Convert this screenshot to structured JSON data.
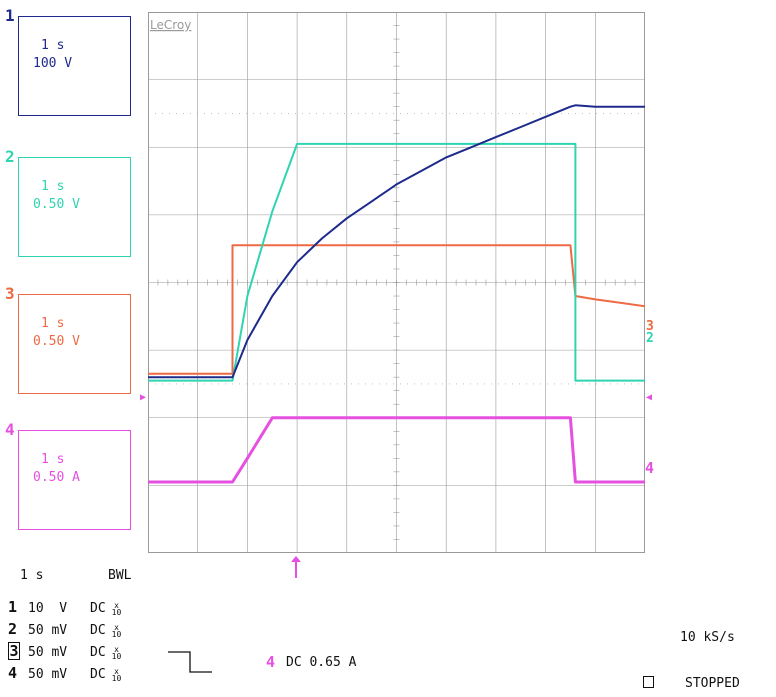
{
  "brand": "LeCroy",
  "colors": {
    "ch1": "#1e2a8c",
    "ch2": "#2fd4b0",
    "ch3": "#ee6a44",
    "ch4": "#e650e0",
    "grid": "#9a9a9a"
  },
  "channels": [
    {
      "num": "1",
      "time": "1 s",
      "scale": "100 V"
    },
    {
      "num": "2",
      "time": "1 s",
      "scale": "0.50 V"
    },
    {
      "num": "3",
      "time": "1 s",
      "scale": "0.50 V"
    },
    {
      "num": "4",
      "time": "1 s",
      "scale": "0.50 A"
    }
  ],
  "timebase": {
    "value": "1 s",
    "bwl": "BWL"
  },
  "coupling": [
    {
      "num": "1",
      "volts": "10  V",
      "mode": "DC"
    },
    {
      "num": "2",
      "volts": "50 mV",
      "mode": "DC"
    },
    {
      "num": "3",
      "volts": "50 mV",
      "mode": "DC"
    },
    {
      "num": "4",
      "volts": "50 mV",
      "mode": "DC"
    }
  ],
  "x10_label": "x\n10",
  "trigger": {
    "channel": "4",
    "text": "DC 0.65 A"
  },
  "sample_rate": "10 kS/s",
  "status": "STOPPED",
  "chart_data": {
    "type": "line",
    "grid": true,
    "x": [
      0,
      0.5,
      1,
      1.5,
      1.7,
      2,
      2.5,
      3,
      3.5,
      4,
      4.5,
      5,
      5.5,
      6,
      6.5,
      7,
      7.5,
      8,
      8.5,
      8.6,
      9,
      9.5,
      10
    ],
    "series": [
      {
        "name": "1",
        "values": [
          -1.4,
          -1.4,
          -1.4,
          -1.4,
          -1.4,
          -0.85,
          -0.2,
          0.3,
          0.65,
          0.95,
          1.2,
          1.45,
          1.65,
          1.85,
          2.0,
          2.15,
          2.3,
          2.45,
          2.6,
          2.62,
          2.6,
          2.6,
          2.6
        ]
      },
      {
        "name": "2",
        "values": [
          -1.45,
          -1.45,
          -1.45,
          -1.45,
          -1.45,
          -0.2,
          1.05,
          2.05,
          2.05,
          2.05,
          2.05,
          2.05,
          2.05,
          2.05,
          2.05,
          2.05,
          2.05,
          2.05,
          2.05,
          -1.45,
          -1.45,
          -1.45,
          -1.45
        ]
      },
      {
        "name": "3",
        "values": [
          -1.35,
          -1.35,
          -1.35,
          -1.35,
          0.55,
          0.55,
          0.55,
          0.55,
          0.55,
          0.55,
          0.55,
          0.55,
          0.55,
          0.55,
          0.55,
          0.55,
          0.55,
          0.55,
          0.55,
          -0.2,
          -0.25,
          -0.3,
          -0.35
        ]
      },
      {
        "name": "4",
        "values": [
          -2.95,
          -2.95,
          -2.95,
          -2.95,
          -2.95,
          -2.6,
          -2.0,
          -2.0,
          -2.0,
          -2.0,
          -2.0,
          -2.0,
          -2.0,
          -2.0,
          -2.0,
          -2.0,
          -2.0,
          -2.0,
          -2.0,
          -2.95,
          -2.95,
          -2.95,
          -2.95
        ]
      }
    ]
  }
}
